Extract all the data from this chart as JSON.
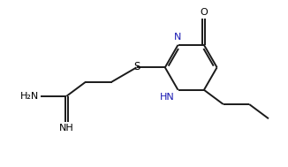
{
  "bg_color": "#ffffff",
  "bond_color": "#1a1a1a",
  "N_color": "#1919b3",
  "line_width": 1.4,
  "font_size": 8.0,
  "figsize": [
    3.26,
    1.89
  ],
  "dpi": 100,
  "xlim": [
    -0.3,
    10.5
  ],
  "ylim": [
    -0.5,
    6.2
  ]
}
